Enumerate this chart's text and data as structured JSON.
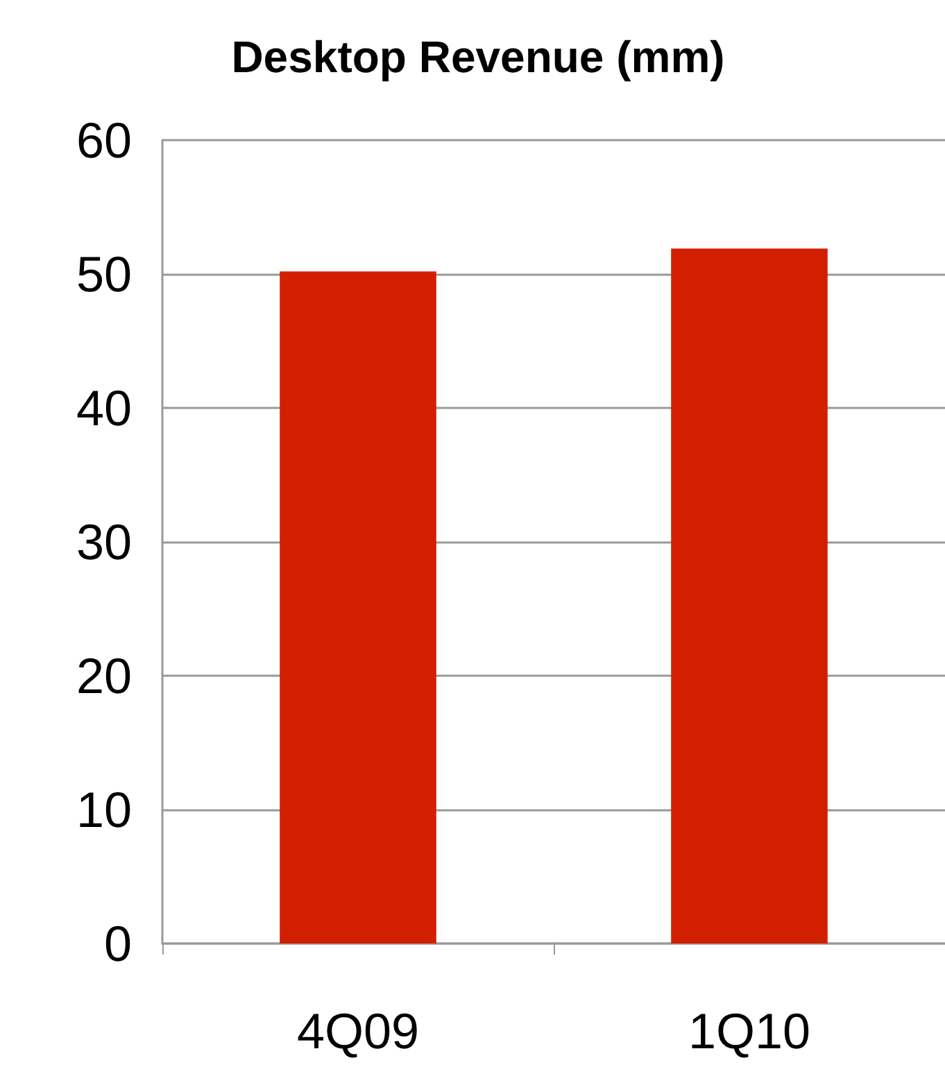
{
  "chart_data": {
    "type": "bar",
    "title": "Desktop Revenue (mm)",
    "categories": [
      "4Q09",
      "1Q10"
    ],
    "values": [
      50.2,
      51.9
    ],
    "color": "#d21f00",
    "ylim": [
      0,
      60
    ],
    "yticks": [
      0,
      10,
      20,
      30,
      40,
      50,
      60
    ],
    "grid": "y"
  }
}
